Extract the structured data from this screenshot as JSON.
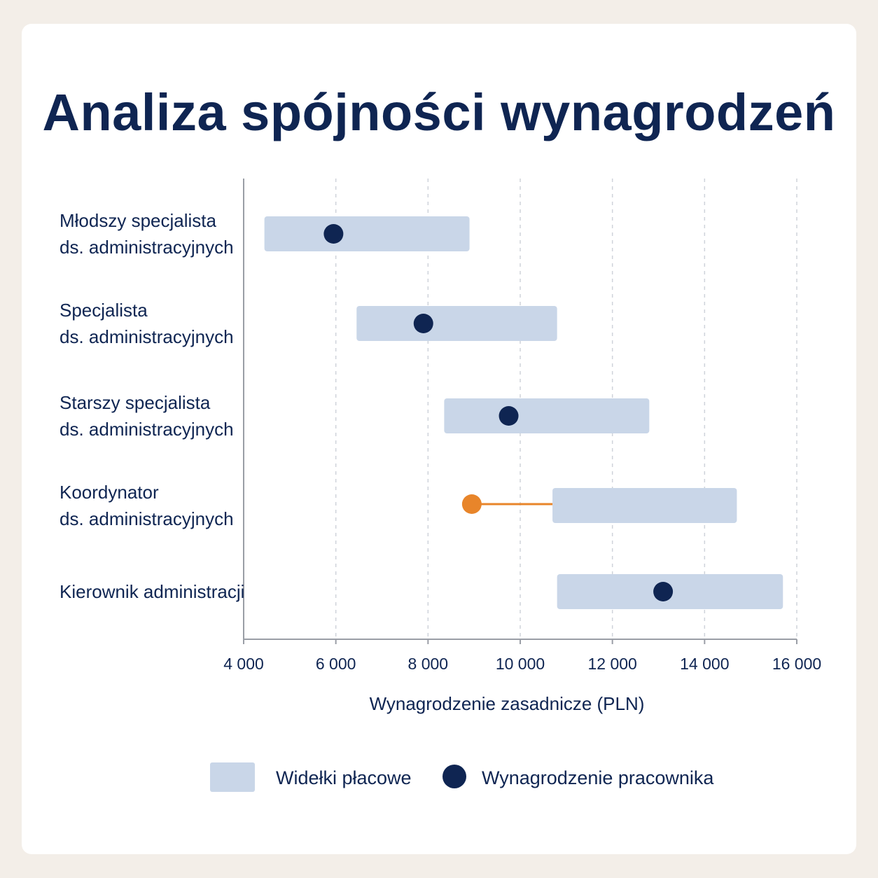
{
  "title": "Analiza spójności wynagrodzeń",
  "chart_data": {
    "type": "range-dot",
    "xlabel": "Wynagrodzenie zasadnicze (PLN)",
    "xlim": [
      4000,
      16000
    ],
    "ticks": [
      4000,
      6000,
      8000,
      10000,
      12000,
      14000,
      16000
    ],
    "tick_labels": [
      "4 000",
      "6 000",
      "8 000",
      "10 000",
      "12 000",
      "14 000",
      "16 000"
    ],
    "grid": "vertical dashed",
    "rows": [
      {
        "label_lines": [
          "Młodszy specjalista",
          "ds. administracyjnych"
        ],
        "range_min": 4450,
        "range_max": 8900,
        "salary": 5950,
        "outlier": false
      },
      {
        "label_lines": [
          "Specjalista",
          "ds. administracyjnych"
        ],
        "range_min": 6450,
        "range_max": 10800,
        "salary": 7900,
        "outlier": false
      },
      {
        "label_lines": [
          "Starszy specjalista",
          "ds. administracyjnych"
        ],
        "range_min": 8350,
        "range_max": 12800,
        "salary": 9750,
        "outlier": false
      },
      {
        "label_lines": [
          "Koordynator",
          "ds. administracyjnych"
        ],
        "range_min": 10700,
        "range_max": 14700,
        "salary": 8950,
        "outlier": true
      },
      {
        "label_lines": [
          "Kierownik administracji"
        ],
        "range_min": 10800,
        "range_max": 15700,
        "salary": 13100,
        "outlier": false
      }
    ],
    "legend": {
      "placement": "bottom",
      "items": [
        "Widełki płacowe",
        "Wynagrodzenie pracownika"
      ]
    },
    "colors": {
      "range_bar": "#c9d6e8",
      "dot": "#0f2552",
      "outlier": "#e8852a",
      "grid": "#cfd3da",
      "axis": "#9a9ea6"
    }
  }
}
